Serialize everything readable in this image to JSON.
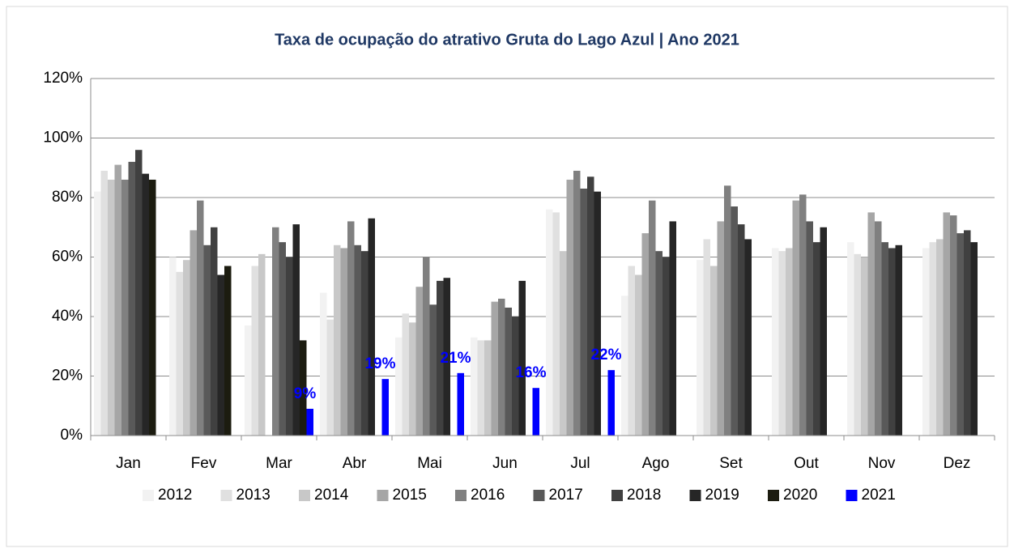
{
  "chart_data": {
    "type": "bar",
    "title": "Taxa de ocupação do atrativo Gruta do Lago Azul | Ano 2021",
    "categories": [
      "Jan",
      "Fev",
      "Mar",
      "Abr",
      "Mai",
      "Jun",
      "Jul",
      "Ago",
      "Set",
      "Out",
      "Nov",
      "Dez"
    ],
    "series": [
      {
        "name": "2012",
        "color": "#f2f2f2",
        "values": [
          82,
          60,
          37,
          48,
          33,
          33,
          76,
          47,
          59,
          63,
          65,
          63
        ]
      },
      {
        "name": "2013",
        "color": "#e0e0e0",
        "values": [
          89,
          55,
          57,
          39,
          41,
          32,
          75,
          57,
          66,
          62,
          61,
          65
        ]
      },
      {
        "name": "2014",
        "color": "#c8c8c8",
        "values": [
          86,
          59,
          61,
          64,
          38,
          32,
          62,
          54,
          57,
          63,
          60,
          66
        ]
      },
      {
        "name": "2015",
        "color": "#a6a6a6",
        "values": [
          91,
          69,
          null,
          63,
          50,
          45,
          86,
          68,
          72,
          79,
          75,
          75
        ]
      },
      {
        "name": "2016",
        "color": "#808080",
        "values": [
          86,
          79,
          70,
          72,
          60,
          46,
          89,
          79,
          84,
          81,
          72,
          74
        ]
      },
      {
        "name": "2017",
        "color": "#595959",
        "values": [
          92,
          64,
          65,
          64,
          44,
          43,
          83,
          62,
          77,
          72,
          65,
          68
        ]
      },
      {
        "name": "2018",
        "color": "#404040",
        "values": [
          96,
          70,
          60,
          62,
          52,
          40,
          87,
          60,
          71,
          65,
          63,
          69
        ]
      },
      {
        "name": "2019",
        "color": "#262626",
        "values": [
          88,
          54,
          71,
          73,
          53,
          52,
          82,
          72,
          66,
          70,
          64,
          65
        ]
      },
      {
        "name": "2020",
        "color": "#1c1c10",
        "values": [
          86,
          57,
          32,
          null,
          null,
          null,
          null,
          null,
          null,
          null,
          null,
          null
        ]
      },
      {
        "name": "2021",
        "color": "#0000ff",
        "values": [
          null,
          null,
          9,
          19,
          21,
          16,
          22,
          null,
          null,
          null,
          null,
          null
        ],
        "value_labels": [
          null,
          null,
          "9%",
          "19%",
          "21%",
          "16%",
          "22%",
          null,
          null,
          null,
          null,
          null
        ]
      }
    ],
    "ylim": [
      0,
      120
    ],
    "yticks": [
      {
        "value": 0,
        "label": "0%"
      },
      {
        "value": 20,
        "label": "20%"
      },
      {
        "value": 40,
        "label": "40%"
      },
      {
        "value": 60,
        "label": "60%"
      },
      {
        "value": 80,
        "label": "80%"
      },
      {
        "value": 100,
        "label": "100%"
      },
      {
        "value": 120,
        "label": "120%"
      }
    ],
    "grid": true,
    "legend": "bottom"
  }
}
